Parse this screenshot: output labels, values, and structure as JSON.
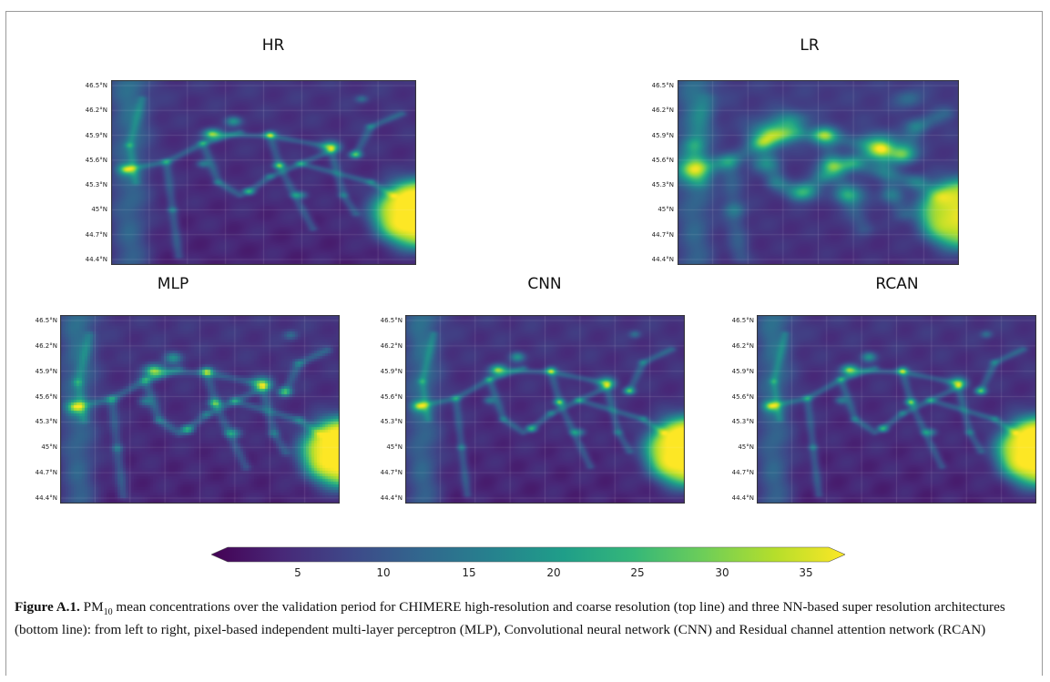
{
  "figure": {
    "panels": [
      {
        "key": "hr",
        "title": "HR",
        "kind": "hr"
      },
      {
        "key": "lr",
        "title": "LR",
        "kind": "lr"
      },
      {
        "key": "mlp",
        "title": "MLP",
        "kind": "mlp"
      },
      {
        "key": "cnn",
        "title": "CNN",
        "kind": "cnn"
      },
      {
        "key": "rcan",
        "title": "RCAN",
        "kind": "rcan"
      }
    ],
    "lat_labels": [
      "46.5°N",
      "46.2°N",
      "45.9°N",
      "45.6°N",
      "45.3°N",
      "45°N",
      "44.7°N",
      "44.4°N"
    ],
    "colorbar": {
      "ticks": [
        "5",
        "10",
        "15",
        "20",
        "25",
        "30",
        "35"
      ],
      "colors": [
        "#440154",
        "#482878",
        "#3e4989",
        "#31688e",
        "#26828e",
        "#1f9e89",
        "#35b779",
        "#6ece58",
        "#b5de2b",
        "#fde725"
      ]
    },
    "caption": {
      "label": "Figure A.1.",
      "pm": "PM",
      "pm_sub": "10",
      "text": " mean concentrations over the validation period for CHIMERE high-resolution and coarse resolution (top line) and three NN-based super resolution architectures (bottom line): from left to right, pixel-based independent multi-layer perceptron (MLP), Convolutional neural network (CNN) and Residual channel attention network (RCAN)"
    }
  }
}
